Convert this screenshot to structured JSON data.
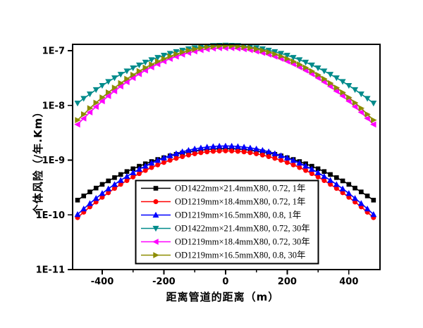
{
  "figure": {
    "background": "#ffffff",
    "frame_color": "#000000",
    "axes": {
      "x": {
        "label": "距离管道的距离（m）",
        "min": -496,
        "max": 501,
        "major_ticks": [
          -400,
          -200,
          0,
          200,
          400
        ],
        "major_tick_labels": [
          "-400",
          "-200",
          "0",
          "200",
          "400"
        ],
        "minor_ticks": [
          -300,
          -100,
          100,
          300
        ]
      },
      "y": {
        "label": "个体风险（/年.Km）",
        "scale": "log",
        "min": 1e-11,
        "max": 1.31e-07,
        "tick_values": [
          1e-07,
          1e-08,
          1e-09,
          1e-10,
          1e-11
        ],
        "tick_labels": [
          "1E-7",
          "1E-8",
          "1E-9",
          "1E-10",
          "1E-11"
        ]
      }
    }
  },
  "chart_data": {
    "type": "line",
    "grid": false,
    "legend_position": "inside-bottom-center",
    "x": [
      -480,
      -460,
      -440,
      -420,
      -400,
      -380,
      -360,
      -340,
      -320,
      -300,
      -280,
      -260,
      -240,
      -220,
      -200,
      -180,
      -160,
      -140,
      -120,
      -100,
      -80,
      -60,
      -40,
      -20,
      0,
      20,
      40,
      60,
      80,
      100,
      120,
      140,
      160,
      180,
      200,
      220,
      240,
      260,
      280,
      300,
      320,
      340,
      360,
      380,
      400,
      420,
      440,
      460,
      480
    ],
    "series": [
      {
        "name": "OD1422mm×21.4mmX80, 0.72, 1年",
        "color": "#000000",
        "marker": "square",
        "values": [
          1.86e-10,
          2.22e-10,
          2.63e-10,
          3.09e-10,
          3.61e-10,
          4.18e-10,
          4.8e-10,
          5.47e-10,
          6.2e-10,
          6.96e-10,
          7.76e-10,
          8.59e-10,
          9.44e-10,
          1.03e-09,
          1.11e-09,
          1.2e-09,
          1.28e-09,
          1.35e-09,
          1.42e-09,
          1.48e-09,
          1.53e-09,
          1.57e-09,
          1.6e-09,
          1.61e-09,
          1.62e-09,
          1.61e-09,
          1.6e-09,
          1.57e-09,
          1.53e-09,
          1.48e-09,
          1.42e-09,
          1.35e-09,
          1.28e-09,
          1.2e-09,
          1.11e-09,
          1.03e-09,
          9.44e-10,
          8.59e-10,
          7.76e-10,
          6.96e-10,
          6.2e-10,
          5.47e-10,
          4.8e-10,
          4.18e-10,
          3.61e-10,
          3.09e-10,
          2.63e-10,
          2.22e-10,
          1.86e-10
        ]
      },
      {
        "name": "OD1219mm×18.4mmX80, 0.72, 1年",
        "color": "#ff0000",
        "marker": "circle",
        "values": [
          8.9e-11,
          1.12e-10,
          1.4e-10,
          1.72e-10,
          2.1e-10,
          2.54e-10,
          3.05e-10,
          3.62e-10,
          4.24e-10,
          4.93e-10,
          5.69e-10,
          6.49e-10,
          7.33e-10,
          8.2e-10,
          9.08e-10,
          9.96e-10,
          1.08e-09,
          1.16e-09,
          1.24e-09,
          1.31e-09,
          1.37e-09,
          1.42e-09,
          1.45e-09,
          1.47e-09,
          1.48e-09,
          1.47e-09,
          1.45e-09,
          1.42e-09,
          1.37e-09,
          1.31e-09,
          1.24e-09,
          1.16e-09,
          1.08e-09,
          9.96e-10,
          9.08e-10,
          8.2e-10,
          7.33e-10,
          6.49e-10,
          5.69e-10,
          4.93e-10,
          4.24e-10,
          3.62e-10,
          3.05e-10,
          2.54e-10,
          2.1e-10,
          1.72e-10,
          1.4e-10,
          1.12e-10,
          8.9e-11
        ]
      },
      {
        "name": "OD1219mm×16.5mmX80, 0.8, 1年",
        "color": "#0000ff",
        "marker": "triangle-up",
        "values": [
          1.02e-10,
          1.29e-10,
          1.62e-10,
          2.01e-10,
          2.47e-10,
          3e-10,
          3.61e-10,
          4.29e-10,
          5.06e-10,
          5.91e-10,
          6.84e-10,
          7.82e-10,
          8.87e-10,
          9.94e-10,
          1.1e-09,
          1.21e-09,
          1.32e-09,
          1.43e-09,
          1.52e-09,
          1.61e-09,
          1.68e-09,
          1.74e-09,
          1.78e-09,
          1.81e-09,
          1.82e-09,
          1.81e-09,
          1.78e-09,
          1.74e-09,
          1.68e-09,
          1.61e-09,
          1.52e-09,
          1.43e-09,
          1.32e-09,
          1.21e-09,
          1.1e-09,
          9.94e-10,
          8.87e-10,
          7.82e-10,
          6.84e-10,
          5.91e-10,
          5.06e-10,
          4.29e-10,
          3.61e-10,
          3e-10,
          2.47e-10,
          2.01e-10,
          1.62e-10,
          1.29e-10,
          1.02e-10
        ]
      },
      {
        "name": "OD1422mm×21.4mmX80, 0.72, 30年",
        "color": "#008b8b",
        "marker": "triangle-down",
        "values": [
          1.1e-08,
          1.34e-08,
          1.62e-08,
          1.94e-08,
          2.31e-08,
          2.73e-08,
          3.19e-08,
          3.7e-08,
          4.26e-08,
          4.85e-08,
          5.48e-08,
          6.15e-08,
          6.84e-08,
          7.53e-08,
          8.24e-08,
          8.93e-08,
          9.6e-08,
          1.02e-07,
          1.08e-07,
          1.13e-07,
          1.18e-07,
          1.21e-07,
          1.24e-07,
          1.25e-07,
          1.26e-07,
          1.25e-07,
          1.24e-07,
          1.21e-07,
          1.18e-07,
          1.13e-07,
          1.08e-07,
          1.02e-07,
          9.6e-08,
          8.93e-08,
          8.24e-08,
          7.53e-08,
          6.84e-08,
          6.15e-08,
          5.48e-08,
          4.85e-08,
          4.26e-08,
          3.7e-08,
          3.19e-08,
          2.73e-08,
          2.31e-08,
          1.94e-08,
          1.62e-08,
          1.34e-08,
          1.1e-08
        ]
      },
      {
        "name": "OD1219mm×18.4mmX80, 0.72, 30年",
        "color": "#ff00ff",
        "marker": "triangle-left",
        "values": [
          4.5e-09,
          5.8e-09,
          7.5e-09,
          9.5e-09,
          1.2e-08,
          1.49e-08,
          1.83e-08,
          2.23e-08,
          2.68e-08,
          3.18e-08,
          3.75e-08,
          4.36e-08,
          5.01e-08,
          5.7e-08,
          6.41e-08,
          7.13e-08,
          7.83e-08,
          8.53e-08,
          9.16e-08,
          9.75e-08,
          1.03e-07,
          1.07e-07,
          1.1e-07,
          1.12e-07,
          1.12e-07,
          1.12e-07,
          1.1e-07,
          1.07e-07,
          1.03e-07,
          9.75e-08,
          9.16e-08,
          8.53e-08,
          7.83e-08,
          7.13e-08,
          6.41e-08,
          5.7e-08,
          5.01e-08,
          4.36e-08,
          3.75e-08,
          3.18e-08,
          2.68e-08,
          2.23e-08,
          1.83e-08,
          1.49e-08,
          1.2e-08,
          9.5e-09,
          7.5e-09,
          5.8e-09,
          4.5e-09
        ]
      },
      {
        "name": "OD1219mm×16.5mmX80, 0.8, 30年",
        "color": "#8c8c00",
        "marker": "triangle-right",
        "values": [
          5.4e-09,
          6.9e-09,
          8.9e-09,
          1.12e-08,
          1.4e-08,
          1.73e-08,
          2.11e-08,
          2.56e-08,
          3.06e-08,
          3.62e-08,
          4.24e-08,
          4.91e-08,
          5.62e-08,
          6.37e-08,
          7.14e-08,
          7.92e-08,
          8.69e-08,
          9.42e-08,
          1.01e-07,
          1.07e-07,
          1.13e-07,
          1.17e-07,
          1.2e-07,
          1.22e-07,
          1.23e-07,
          1.22e-07,
          1.2e-07,
          1.17e-07,
          1.13e-07,
          1.07e-07,
          1.01e-07,
          9.42e-08,
          8.69e-08,
          7.92e-08,
          7.14e-08,
          6.37e-08,
          5.62e-08,
          4.91e-08,
          4.24e-08,
          3.62e-08,
          3.06e-08,
          2.56e-08,
          2.11e-08,
          1.73e-08,
          1.4e-08,
          1.12e-08,
          8.9e-09,
          6.9e-09,
          5.4e-09
        ]
      }
    ]
  }
}
